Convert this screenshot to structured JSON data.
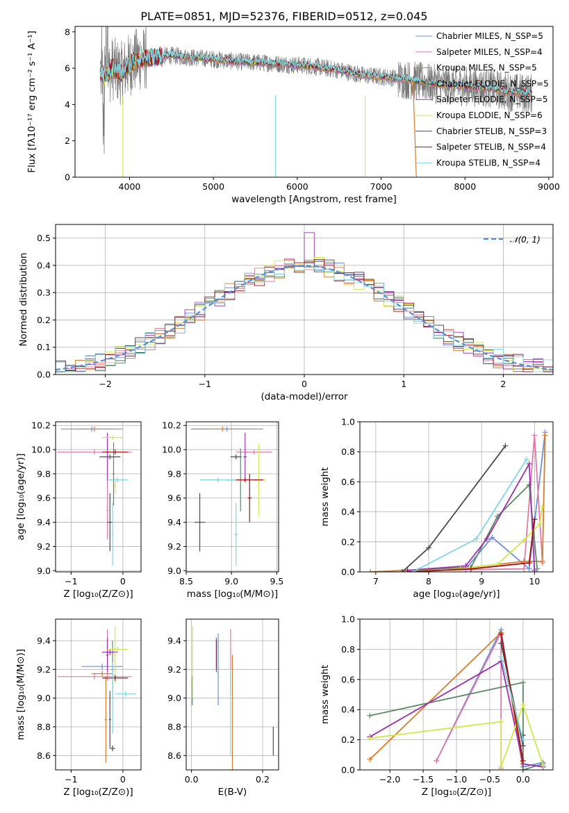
{
  "colors": {
    "chabrier_miles": "#6f8fd8",
    "salpeter_miles": "#e07aa8",
    "kroupa_miles": "#d97a2a",
    "chabrier_elodie": "#5a8a64",
    "salpeter_elodie": "#9b2fae",
    "kroupa_elodie": "#cfe84a",
    "chabrier_stelib": "#4a4a4a",
    "salpeter_stelib": "#a01010",
    "kroupa_stelib": "#7fd6e0",
    "normal": "#5b8ddb",
    "data": "#777777"
  },
  "chart_data": [
    {
      "id": "spectrum",
      "type": "line",
      "title": "PLATE=0851, MJD=52376, FIBERID=0512, z=0.045",
      "xlabel": "wavelength [Angstrom, rest frame]",
      "ylabel": "Flux [fλ10⁻¹⁷ erg cm⁻² s⁻¹ A⁻¹]",
      "xlim": [
        3350,
        9050
      ],
      "ylim": [
        0,
        8.3
      ],
      "xticks": [
        4000,
        5000,
        6000,
        7000,
        8000,
        9000
      ],
      "yticks": [
        0,
        2,
        4,
        6,
        8
      ],
      "legend_position": "upper right",
      "legend": [
        "Chabrier MILES, N_SSP=5",
        "Salpeter MILES, N_SSP=4",
        "Kroupa MILES, N_SSP=5",
        "Chabrier ELODIE, N_SSP=5",
        "Salpeter ELODIE, N_SSP=5",
        "Kroupa ELODIE, N_SSP=6",
        "Chabrier STELIB, N_SSP=3",
        "Salpeter STELIB, N_SSP=4",
        "Kroupa STELIB, N_SSP=4"
      ],
      "model_continuum": {
        "x": [
          3650,
          3700,
          3800,
          3900,
          4000,
          4100,
          4300,
          4500,
          4700,
          5000,
          5300,
          5600,
          5900,
          6200,
          6500,
          6800,
          7100,
          7400,
          7700,
          8000,
          8300,
          8500,
          8800
        ],
        "y": [
          5.8,
          5.5,
          6.0,
          5.7,
          6.2,
          6.5,
          6.6,
          6.7,
          6.6,
          6.5,
          6.35,
          6.3,
          6.2,
          6.1,
          5.9,
          5.6,
          5.5,
          5.3,
          5.1,
          5.0,
          4.9,
          4.7,
          4.6
        ]
      }
    },
    {
      "id": "residuals",
      "type": "bar",
      "xlabel": "(data-model)/error",
      "ylabel": "Normed distribution",
      "xlim": [
        -2.5,
        2.5
      ],
      "ylim": [
        0,
        0.55
      ],
      "xticks": [
        -2,
        -1,
        0,
        1,
        2
      ],
      "yticks": [
        0.0,
        0.1,
        0.2,
        0.3,
        0.4,
        0.5
      ],
      "legend": [
        "𝒩(0, 1)"
      ],
      "legend_position": "upper right",
      "bin_width": 0.1,
      "grid": true
    },
    {
      "id": "z_age",
      "type": "scatter",
      "xlabel": "Z [log₁₀(Z/Z⊙)]",
      "ylabel": "age  [log₁₀(age/yr)]",
      "xlim": [
        -1.3,
        0.35
      ],
      "ylim": [
        8.99,
        10.23
      ],
      "xticks": [
        -1,
        0
      ],
      "yticks": [
        9.0,
        9.2,
        9.4,
        9.6,
        9.8,
        10.0,
        10.2
      ],
      "grid": true,
      "points": [
        {
          "series": "Chabrier MILES",
          "x": -0.6,
          "xerr": 0.6,
          "y": 10.17,
          "yerr": 0.02
        },
        {
          "series": "Salpeter MILES",
          "x": -0.55,
          "xerr": 0.72,
          "y": 9.98,
          "yerr": 0.02
        },
        {
          "series": "Salpeter MILES",
          "x": -0.3,
          "xerr": 0.02,
          "y": 9.5,
          "yerr": 0.24
        },
        {
          "series": "Kroupa MILES",
          "x": -0.55,
          "xerr": 0.4,
          "y": 10.17,
          "yerr": 0.02
        },
        {
          "series": "Chabrier ELODIE",
          "x": -0.18,
          "xerr": 0.02,
          "y": 9.8,
          "yerr": 0.26
        },
        {
          "series": "Salpeter ELODIE",
          "x": -0.3,
          "xerr": 0.02,
          "y": 9.94,
          "yerr": 0.2
        },
        {
          "series": "Kroupa ELODIE",
          "x": -0.2,
          "xerr": 0.2,
          "y": 10.1,
          "yerr": 0.02
        },
        {
          "series": "Kroupa ELODIE",
          "x": -0.15,
          "xerr": 0.02,
          "y": 9.7,
          "yerr": 0.06
        },
        {
          "series": "Chabrier STELIB",
          "x": -0.25,
          "xerr": 0.05,
          "y": 9.4,
          "yerr": 0.24
        },
        {
          "series": "Chabrier STELIB",
          "x": -0.25,
          "xerr": 0.2,
          "y": 9.94,
          "yerr": 0.02
        },
        {
          "series": "Salpeter STELIB",
          "x": -0.15,
          "xerr": 0.25,
          "y": 9.98,
          "yerr": 0.02
        },
        {
          "series": "Kroupa STELIB",
          "x": -0.1,
          "xerr": 0.2,
          "y": 9.75,
          "yerr": 0.02
        },
        {
          "series": "Kroupa STELIB",
          "x": -0.2,
          "xerr": 0.02,
          "y": 9.3,
          "yerr": 0.26
        }
      ]
    },
    {
      "id": "mass_age",
      "type": "scatter",
      "xlabel": "mass [log₁₀(M/M⊙)]",
      "ylabel": "",
      "xlim": [
        8.5,
        9.52
      ],
      "ylim": [
        8.99,
        10.23
      ],
      "xticks": [
        8.5,
        9.0,
        9.5
      ],
      "yticks": [
        9.0,
        9.2,
        9.4,
        9.6,
        9.8,
        10.0,
        10.2
      ],
      "grid": true,
      "points": [
        {
          "series": "Chabrier MILES",
          "x": 8.95,
          "xerr": 0.4,
          "y": 10.17,
          "yerr": 0.02
        },
        {
          "series": "Salpeter MILES",
          "x": 9.25,
          "xerr": 0.2,
          "y": 9.98,
          "yerr": 0.02
        },
        {
          "series": "Kroupa MILES",
          "x": 8.9,
          "xerr": 0.35,
          "y": 10.17,
          "yerr": 0.02
        },
        {
          "series": "Chabrier ELODIE",
          "x": 9.1,
          "xerr": 0.06,
          "y": 9.75,
          "yerr": 0.26
        },
        {
          "series": "Salpeter ELODIE",
          "x": 9.15,
          "xerr": 0.02,
          "y": 9.94,
          "yerr": 0.2
        },
        {
          "series": "Kroupa ELODIE",
          "x": 9.3,
          "xerr": 0.08,
          "y": 9.75,
          "yerr": 0.3
        },
        {
          "series": "Chabrier STELIB",
          "x": 8.65,
          "xerr": 0.06,
          "y": 9.4,
          "yerr": 0.24
        },
        {
          "series": "Chabrier STELIB",
          "x": 9.05,
          "xerr": 0.06,
          "y": 9.94,
          "yerr": 0.02
        },
        {
          "series": "Salpeter STELIB",
          "x": 9.15,
          "xerr": 0.2,
          "y": 9.75,
          "yerr": 0.02
        },
        {
          "series": "Salpeter STELIB",
          "x": 9.2,
          "xerr": 0.02,
          "y": 9.6,
          "yerr": 0.2
        },
        {
          "series": "Kroupa STELIB",
          "x": 8.85,
          "xerr": 0.2,
          "y": 9.75,
          "yerr": 0.02
        },
        {
          "series": "Kroupa STELIB",
          "x": 9.05,
          "xerr": 0.02,
          "y": 9.3,
          "yerr": 0.26
        }
      ]
    },
    {
      "id": "age_weight",
      "type": "line",
      "xlabel": "age  [log₁₀(age/yr)]",
      "ylabel": "mass weight",
      "xlim": [
        6.7,
        10.35
      ],
      "ylim": [
        0,
        1
      ],
      "xticks": [
        7,
        8,
        9,
        10
      ],
      "yticks": [
        0.0,
        0.2,
        0.4,
        0.6,
        0.8,
        1.0
      ],
      "grid": true,
      "series": [
        {
          "name": "Chabrier MILES",
          "x": [
            7.5,
            8.7,
            9.2,
            9.9,
            10.2
          ],
          "y": [
            0.0,
            0.02,
            0.23,
            0.02,
            0.93
          ]
        },
        {
          "name": "Salpeter MILES",
          "x": [
            7.8,
            9.8,
            10.0,
            10.15
          ],
          "y": [
            0.01,
            0.02,
            0.91,
            0.06
          ]
        },
        {
          "name": "Kroupa MILES",
          "x": [
            6.9,
            8.8,
            9.8,
            10.15,
            10.2
          ],
          "y": [
            0.0,
            0.03,
            0.07,
            0.07,
            0.91
          ]
        },
        {
          "name": "Chabrier ELODIE",
          "x": [
            7.6,
            8.8,
            9.3,
            9.9,
            10.05
          ],
          "y": [
            0.01,
            0.03,
            0.37,
            0.58,
            0.02
          ]
        },
        {
          "name": "Salpeter ELODIE",
          "x": [
            7.6,
            8.7,
            9.1,
            9.9,
            10.0
          ],
          "y": [
            0.01,
            0.04,
            0.22,
            0.72,
            0.01
          ]
        },
        {
          "name": "Kroupa ELODIE",
          "x": [
            7.5,
            8.6,
            9.3,
            9.8,
            10.1,
            10.15
          ],
          "y": [
            0.0,
            0.02,
            0.05,
            0.21,
            0.32,
            0.43
          ]
        },
        {
          "name": "Chabrier STELIB",
          "x": [
            7.5,
            8.0,
            9.45
          ],
          "y": [
            0.0,
            0.16,
            0.84
          ]
        },
        {
          "name": "Salpeter STELIB",
          "x": [
            7.6,
            8.8,
            9.9,
            10.0
          ],
          "y": [
            0.0,
            0.02,
            0.06,
            0.35
          ]
        },
        {
          "name": "Kroupa STELIB",
          "x": [
            7.7,
            8.9,
            9.85
          ],
          "y": [
            0.0,
            0.22,
            0.75
          ]
        }
      ]
    },
    {
      "id": "z_mass",
      "type": "scatter",
      "xlabel": "Z [log₁₀(Z/Z⊙)]",
      "ylabel": "mass [log₁₀(M/M⊙)]",
      "xlim": [
        -1.3,
        0.35
      ],
      "ylim": [
        8.5,
        9.55
      ],
      "xticks": [
        -1,
        0
      ],
      "yticks": [
        8.6,
        8.8,
        9.0,
        9.2,
        9.4
      ],
      "grid": true,
      "points": [
        {
          "series": "Chabrier MILES",
          "x": -0.4,
          "xerr": 0.4,
          "y": 9.22,
          "yerr": 0.02
        },
        {
          "series": "Salpeter MILES",
          "x": -0.55,
          "xerr": 0.72,
          "y": 9.15,
          "yerr": 0.02
        },
        {
          "series": "Salpeter MILES",
          "x": -0.3,
          "xerr": 0.02,
          "y": 9.3,
          "yerr": 0.18
        },
        {
          "series": "Kroupa MILES",
          "x": -0.33,
          "xerr": 0.02,
          "y": 8.85,
          "yerr": 0.3
        },
        {
          "series": "Kroupa MILES",
          "x": -0.4,
          "xerr": 0.2,
          "y": 9.17,
          "yerr": 0.02
        },
        {
          "series": "Chabrier ELODIE",
          "x": -0.2,
          "xerr": 0.02,
          "y": 9.2,
          "yerr": 0.2
        },
        {
          "series": "Salpeter ELODIE",
          "x": -0.25,
          "xerr": 0.15,
          "y": 9.32,
          "yerr": 0.02
        },
        {
          "series": "Salpeter ELODIE",
          "x": -0.3,
          "xerr": 0.02,
          "y": 9.3,
          "yerr": 0.12
        },
        {
          "series": "Kroupa ELODIE",
          "x": -0.1,
          "xerr": 0.2,
          "y": 9.34,
          "yerr": 0.02
        },
        {
          "series": "Kroupa ELODIE",
          "x": -0.15,
          "xerr": 0.02,
          "y": 9.3,
          "yerr": 0.2
        },
        {
          "series": "Chabrier STELIB",
          "x": -0.2,
          "xerr": 0.05,
          "y": 8.65,
          "yerr": 0.02
        },
        {
          "series": "Chabrier STELIB",
          "x": -0.25,
          "xerr": 0.02,
          "y": 8.85,
          "yerr": 0.2
        },
        {
          "series": "Salpeter STELIB",
          "x": -0.15,
          "xerr": 0.25,
          "y": 9.14,
          "yerr": 0.02
        },
        {
          "series": "Kroupa STELIB",
          "x": 0.05,
          "xerr": 0.2,
          "y": 9.03,
          "yerr": 0.02
        },
        {
          "series": "Kroupa STELIB",
          "x": -0.2,
          "xerr": 0.02,
          "y": 9.0,
          "yerr": 0.25
        }
      ]
    },
    {
      "id": "ebv_mass",
      "type": "scatter",
      "xlabel": "E(B-V)",
      "ylabel": "",
      "xlim": [
        -0.015,
        0.245
      ],
      "ylim": [
        8.5,
        9.55
      ],
      "xticks": [
        0.0,
        0.2
      ],
      "yticks": [
        8.6,
        8.8,
        9.0,
        9.2,
        9.4
      ],
      "grid": true,
      "points": [
        {
          "series": "Chabrier MILES",
          "x": 0.075,
          "y": 9.2,
          "yerr": 0.25
        },
        {
          "series": "Salpeter MILES",
          "x": 0.11,
          "y": 9.25,
          "yerr": 0.23
        },
        {
          "series": "Kroupa MILES",
          "x": 0.115,
          "y": 8.9,
          "yerr": 0.4
        },
        {
          "series": "Chabrier ELODIE",
          "x": 0.002,
          "y": 9.05,
          "yerr": 0.1
        },
        {
          "series": "Salpeter ELODIE",
          "x": 0.07,
          "y": 9.3,
          "yerr": 0.12
        },
        {
          "series": "Kroupa ELODIE",
          "x": 0.003,
          "y": 9.25,
          "yerr": 0.25
        },
        {
          "series": "Chabrier STELIB",
          "x": 0.23,
          "y": 8.7,
          "yerr": 0.1
        },
        {
          "series": "Salpeter STELIB",
          "x": 0.07,
          "y": 9.3,
          "yerr": 0.1
        },
        {
          "series": "Kroupa STELIB",
          "x": 0.11,
          "y": 8.9,
          "yerr": 0.3
        }
      ]
    },
    {
      "id": "z_weight",
      "type": "line",
      "xlabel": "Z [log₁₀(Z/Z⊙)]",
      "ylabel": "mass weight",
      "xlim": [
        -2.45,
        0.45
      ],
      "ylim": [
        0,
        1
      ],
      "xticks": [
        -2.0,
        -1.5,
        -1.0,
        -0.5,
        0.0
      ],
      "yticks": [
        0.0,
        0.2,
        0.4,
        0.6,
        0.8,
        1.0
      ],
      "grid": true,
      "series": [
        {
          "name": "Chabrier MILES",
          "x": [
            -1.3,
            -0.33,
            0.0,
            0.3
          ],
          "y": [
            0.06,
            0.93,
            0.02,
            0.05
          ]
        },
        {
          "name": "Salpeter MILES",
          "x": [
            -1.3,
            -0.33,
            -0.33
          ],
          "y": [
            0.06,
            0.91,
            0.01
          ]
        },
        {
          "name": "Kroupa MILES",
          "x": [
            -2.3,
            -0.33,
            0.0
          ],
          "y": [
            0.07,
            0.91,
            0.0
          ]
        },
        {
          "name": "Chabrier ELODIE",
          "x": [
            -2.3,
            0.0,
            0.0,
            0.3
          ],
          "y": [
            0.36,
            0.58,
            0.0,
            0.04
          ]
        },
        {
          "name": "Salpeter ELODIE",
          "x": [
            -2.3,
            -0.33,
            0.0,
            0.3
          ],
          "y": [
            0.22,
            0.72,
            0.04,
            0.02
          ]
        },
        {
          "name": "Kroupa ELODIE",
          "x": [
            -2.3,
            -0.33,
            -0.33,
            0.0,
            0.3
          ],
          "y": [
            0.21,
            0.32,
            0.02,
            0.43,
            0.03
          ]
        },
        {
          "name": "Chabrier STELIB",
          "x": [
            -0.33,
            0.0,
            0.0
          ],
          "y": [
            0.84,
            0.16,
            0.23
          ]
        },
        {
          "name": "Salpeter STELIB",
          "x": [
            -0.33,
            0.0
          ],
          "y": [
            0.9,
            0.06
          ]
        },
        {
          "name": "Kroupa STELIB",
          "x": [
            -0.33,
            0.0
          ],
          "y": [
            0.75,
            0.2
          ]
        }
      ]
    }
  ]
}
